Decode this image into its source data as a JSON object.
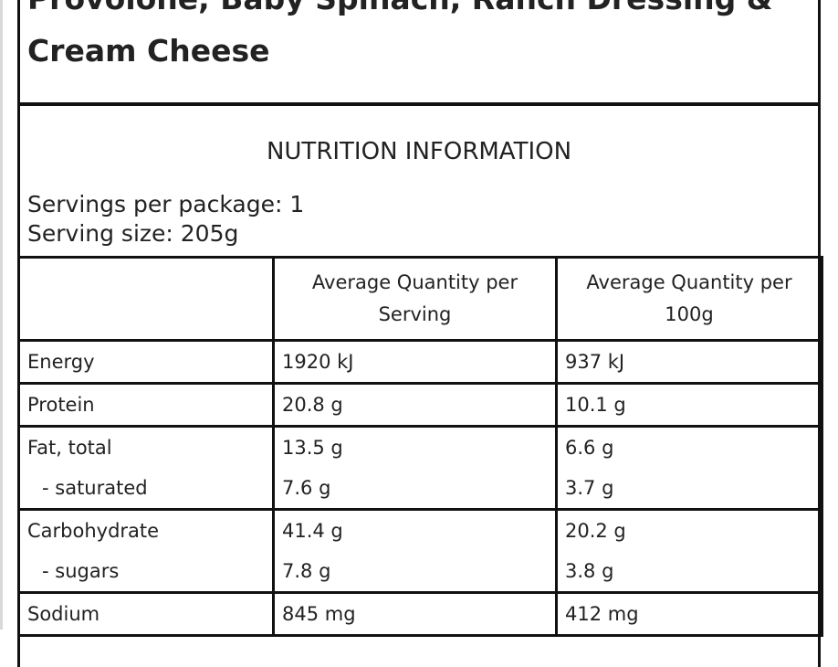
{
  "product": {
    "title_line1": "Provolone, Baby Spinach, Ranch Dressing &",
    "title_line2": "Cream Cheese"
  },
  "nutrition": {
    "heading": "NUTRITION INFORMATION",
    "servings_per_package": "Servings per package: 1",
    "serving_size": "Serving size: 205g",
    "columns": {
      "nutrient": "",
      "per_serving": "Average Quantity per Serving",
      "per_100g": "Average Quantity per 100g"
    },
    "rows": [
      {
        "lines": [
          {
            "name": "Energy",
            "per_serving": "1920 kJ",
            "per_100g": "937 kJ"
          }
        ]
      },
      {
        "lines": [
          {
            "name": "Protein",
            "per_serving": "20.8 g",
            "per_100g": "10.1 g"
          }
        ]
      },
      {
        "lines": [
          {
            "name": "Fat, total",
            "per_serving": "13.5 g",
            "per_100g": "6.6 g"
          },
          {
            "name": "- saturated",
            "per_serving": "7.6 g",
            "per_100g": "3.7 g"
          }
        ]
      },
      {
        "lines": [
          {
            "name": "Carbohydrate",
            "per_serving": "41.4 g",
            "per_100g": "20.2 g"
          },
          {
            "name": "- sugars",
            "per_serving": "7.8 g",
            "per_100g": "3.8 g"
          }
        ]
      },
      {
        "lines": [
          {
            "name": "Sodium",
            "per_serving": "845 mg",
            "per_100g": "412 mg"
          }
        ]
      }
    ]
  }
}
